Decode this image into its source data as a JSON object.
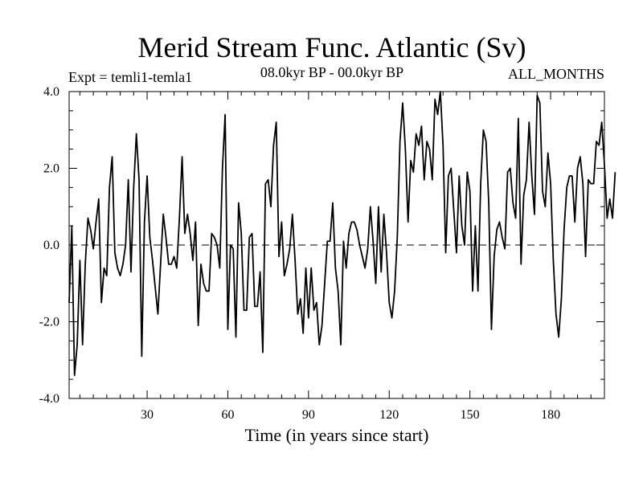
{
  "chart_data": {
    "type": "line",
    "title": "Merid Stream Func. Atlantic (Sv)",
    "subtitle_left": "Expt = temli1-temla1",
    "subtitle_center": "08.0kyr BP - 00.0kyr BP",
    "subtitle_right": "ALL_MONTHS",
    "xlabel": "Time (in years since start)",
    "ylabel": "",
    "xlim": [
      1,
      200
    ],
    "ylim": [
      -4.0,
      4.0
    ],
    "x_ticks": [
      30,
      60,
      90,
      120,
      150,
      180
    ],
    "x_tick_labels": [
      "30",
      "60",
      "90",
      "120",
      "150",
      "180"
    ],
    "y_ticks": [
      4.0,
      2.0,
      0.0,
      -2.0,
      -4.0
    ],
    "y_tick_labels": [
      "4.0",
      "2.0",
      "0.0",
      "-2.0",
      "-4.0"
    ],
    "reference_line": 0.0,
    "grid": false,
    "series": [
      {
        "name": "Merid Stream Func. Atlantic",
        "x_start": 1,
        "x_step": 1,
        "values": [
          -1.5,
          0.5,
          -3.4,
          -2.6,
          -0.4,
          -2.6,
          -0.5,
          0.7,
          0.4,
          -0.1,
          0.6,
          1.2,
          -1.5,
          -0.6,
          -0.8,
          1.5,
          2.3,
          -0.2,
          -0.6,
          -0.8,
          -0.5,
          0.0,
          1.7,
          -0.7,
          1.5,
          2.9,
          1.7,
          -2.9,
          0.6,
          1.8,
          0.2,
          -0.4,
          -1.1,
          -1.8,
          -0.5,
          0.8,
          0.2,
          -0.5,
          -0.5,
          -0.3,
          -0.6,
          0.7,
          2.3,
          0.3,
          0.8,
          0.3,
          -0.4,
          0.6,
          -2.1,
          -0.5,
          -1.0,
          -1.2,
          -1.2,
          0.3,
          0.2,
          0.0,
          -0.6,
          2.0,
          3.4,
          -2.2,
          0.0,
          -0.1,
          -2.4,
          1.1,
          0.3,
          -1.7,
          -1.7,
          0.2,
          0.3,
          -1.6,
          -1.6,
          -0.7,
          -2.8,
          1.6,
          1.7,
          1.0,
          2.6,
          3.2,
          -0.3,
          0.6,
          -0.8,
          -0.5,
          -0.1,
          0.8,
          -0.4,
          -1.8,
          -1.4,
          -2.3,
          -0.6,
          -1.9,
          -0.6,
          -1.7,
          -1.5,
          -2.6,
          -2.1,
          -1.0,
          0.1,
          0.1,
          1.1,
          -0.6,
          -1.2,
          -2.6,
          0.1,
          -0.6,
          0.3,
          0.6,
          0.6,
          0.4,
          0.0,
          -0.3,
          -0.6,
          -0.1,
          1.0,
          0.1,
          -1.0,
          1.0,
          -0.7,
          0.8,
          -0.2,
          -1.5,
          -1.9,
          -1.2,
          0.2,
          2.7,
          3.7,
          2.5,
          0.6,
          2.2,
          1.9,
          2.9,
          2.6,
          3.1,
          1.7,
          2.7,
          2.5,
          1.7,
          3.8,
          3.4,
          4.0,
          2.6,
          -0.2,
          1.8,
          2.0,
          0.9,
          -0.2,
          1.8,
          0.5,
          0.0,
          1.9,
          1.4,
          -1.2,
          0.5,
          -1.2,
          1.6,
          3.0,
          2.7,
          1.1,
          -2.2,
          -0.3,
          0.4,
          0.6,
          0.2,
          -0.1,
          1.9,
          2.0,
          1.1,
          0.7,
          3.3,
          -0.5,
          1.3,
          1.7,
          3.2,
          1.8,
          0.8,
          3.9,
          3.7,
          1.4,
          1.0,
          2.4,
          1.6,
          -0.4,
          -1.8,
          -2.4,
          -1.4,
          0.4,
          1.5,
          1.8,
          1.8,
          0.6,
          2.0,
          2.3,
          1.6,
          -0.3,
          1.7,
          1.6,
          1.6,
          2.7,
          2.6,
          3.2,
          2.1,
          0.7,
          1.2,
          0.7,
          1.9
        ]
      }
    ]
  }
}
